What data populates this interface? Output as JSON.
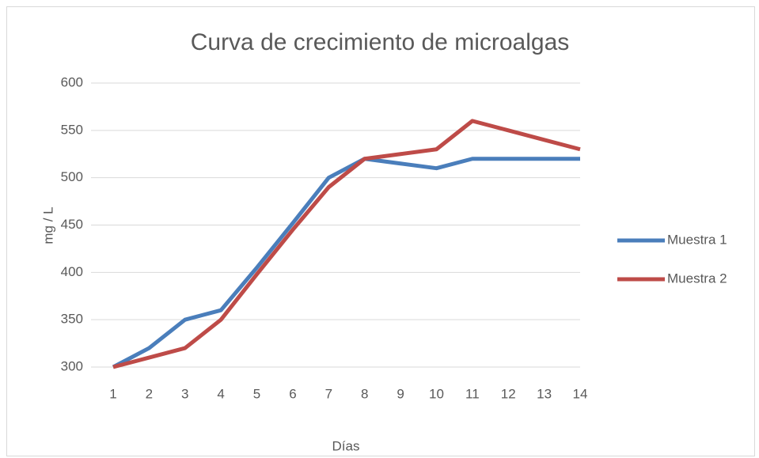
{
  "chart_data": {
    "type": "line",
    "title": "Curva de crecimiento de microalgas",
    "x_label": "Días",
    "y_label": "mg / L",
    "x": [
      1,
      2,
      3,
      4,
      5,
      6,
      7,
      8,
      9,
      10,
      11,
      12,
      13,
      14
    ],
    "xlim": [
      1,
      14
    ],
    "xticks": [
      1,
      2,
      3,
      4,
      5,
      6,
      7,
      8,
      9,
      10,
      11,
      12,
      13,
      14
    ],
    "ylim": [
      300,
      600
    ],
    "yticks": [
      300,
      350,
      400,
      450,
      500,
      550,
      600
    ],
    "grid": true,
    "legend": "right",
    "series": [
      {
        "name": "Muestra 1",
        "color": "#4a7ebb",
        "values": [
          300,
          320,
          350,
          360,
          405,
          452,
          500,
          520,
          515,
          510,
          520,
          520,
          520,
          520
        ]
      },
      {
        "name": "Muestra 2",
        "color": "#be4b48",
        "values": [
          300,
          310,
          320,
          350,
          398,
          445,
          490,
          520,
          525,
          530,
          560,
          550,
          540,
          530
        ]
      }
    ]
  }
}
